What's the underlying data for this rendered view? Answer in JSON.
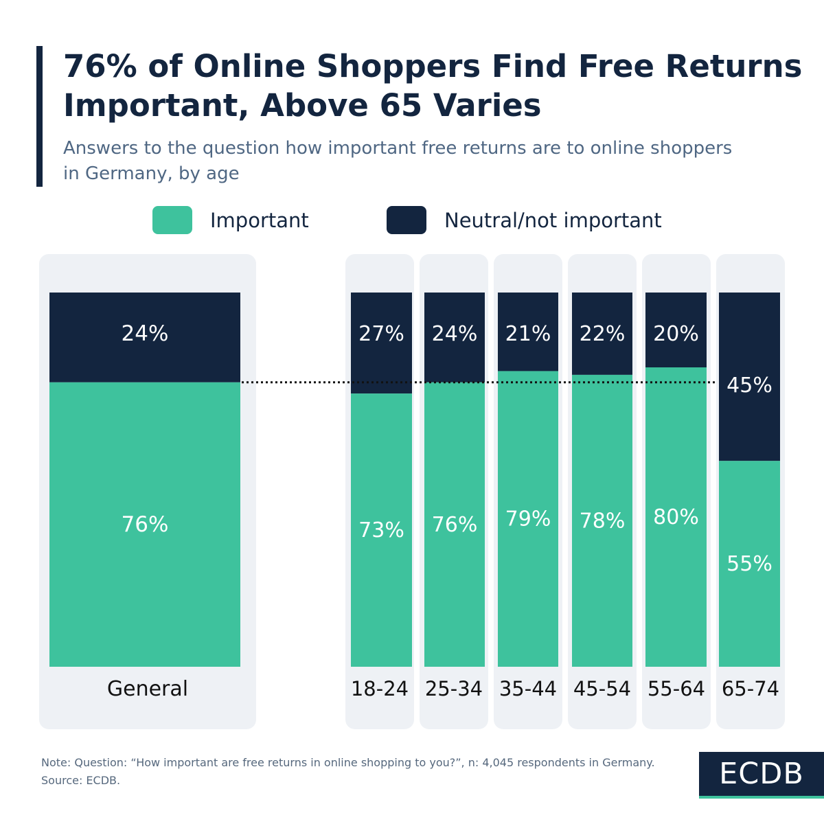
{
  "title": "76% of Online Shoppers Find Free Returns Important, Above 65 Varies",
  "subtitle": "Answers to the question how important free returns are to online shoppers in Germany, by age",
  "legend": {
    "important": "Important",
    "neutral": "Neutral/not important"
  },
  "colors": {
    "important": "#3ec29d",
    "neutral": "#13253f",
    "panel": "#eef1f5",
    "text_dark": "#13253f"
  },
  "chart_data": {
    "type": "bar",
    "stacked": true,
    "categories": [
      "General",
      "18-24",
      "25-34",
      "35-44",
      "45-54",
      "55-64",
      "65-74"
    ],
    "series": [
      {
        "name": "Important",
        "values": [
          76,
          73,
          76,
          79,
          78,
          80,
          55
        ]
      },
      {
        "name": "Neutral/not important",
        "values": [
          24,
          27,
          24,
          21,
          22,
          20,
          45
        ]
      }
    ],
    "ylim": [
      0,
      100
    ],
    "value_suffix": "%",
    "reference_line": 76,
    "legend_position": "top"
  },
  "note": {
    "line1": "Note: Question: “How important are free returns in online shopping to you?”, n: 4,045 respondents in Germany.",
    "source": "Source: ECDB."
  },
  "logo": "ECDB"
}
